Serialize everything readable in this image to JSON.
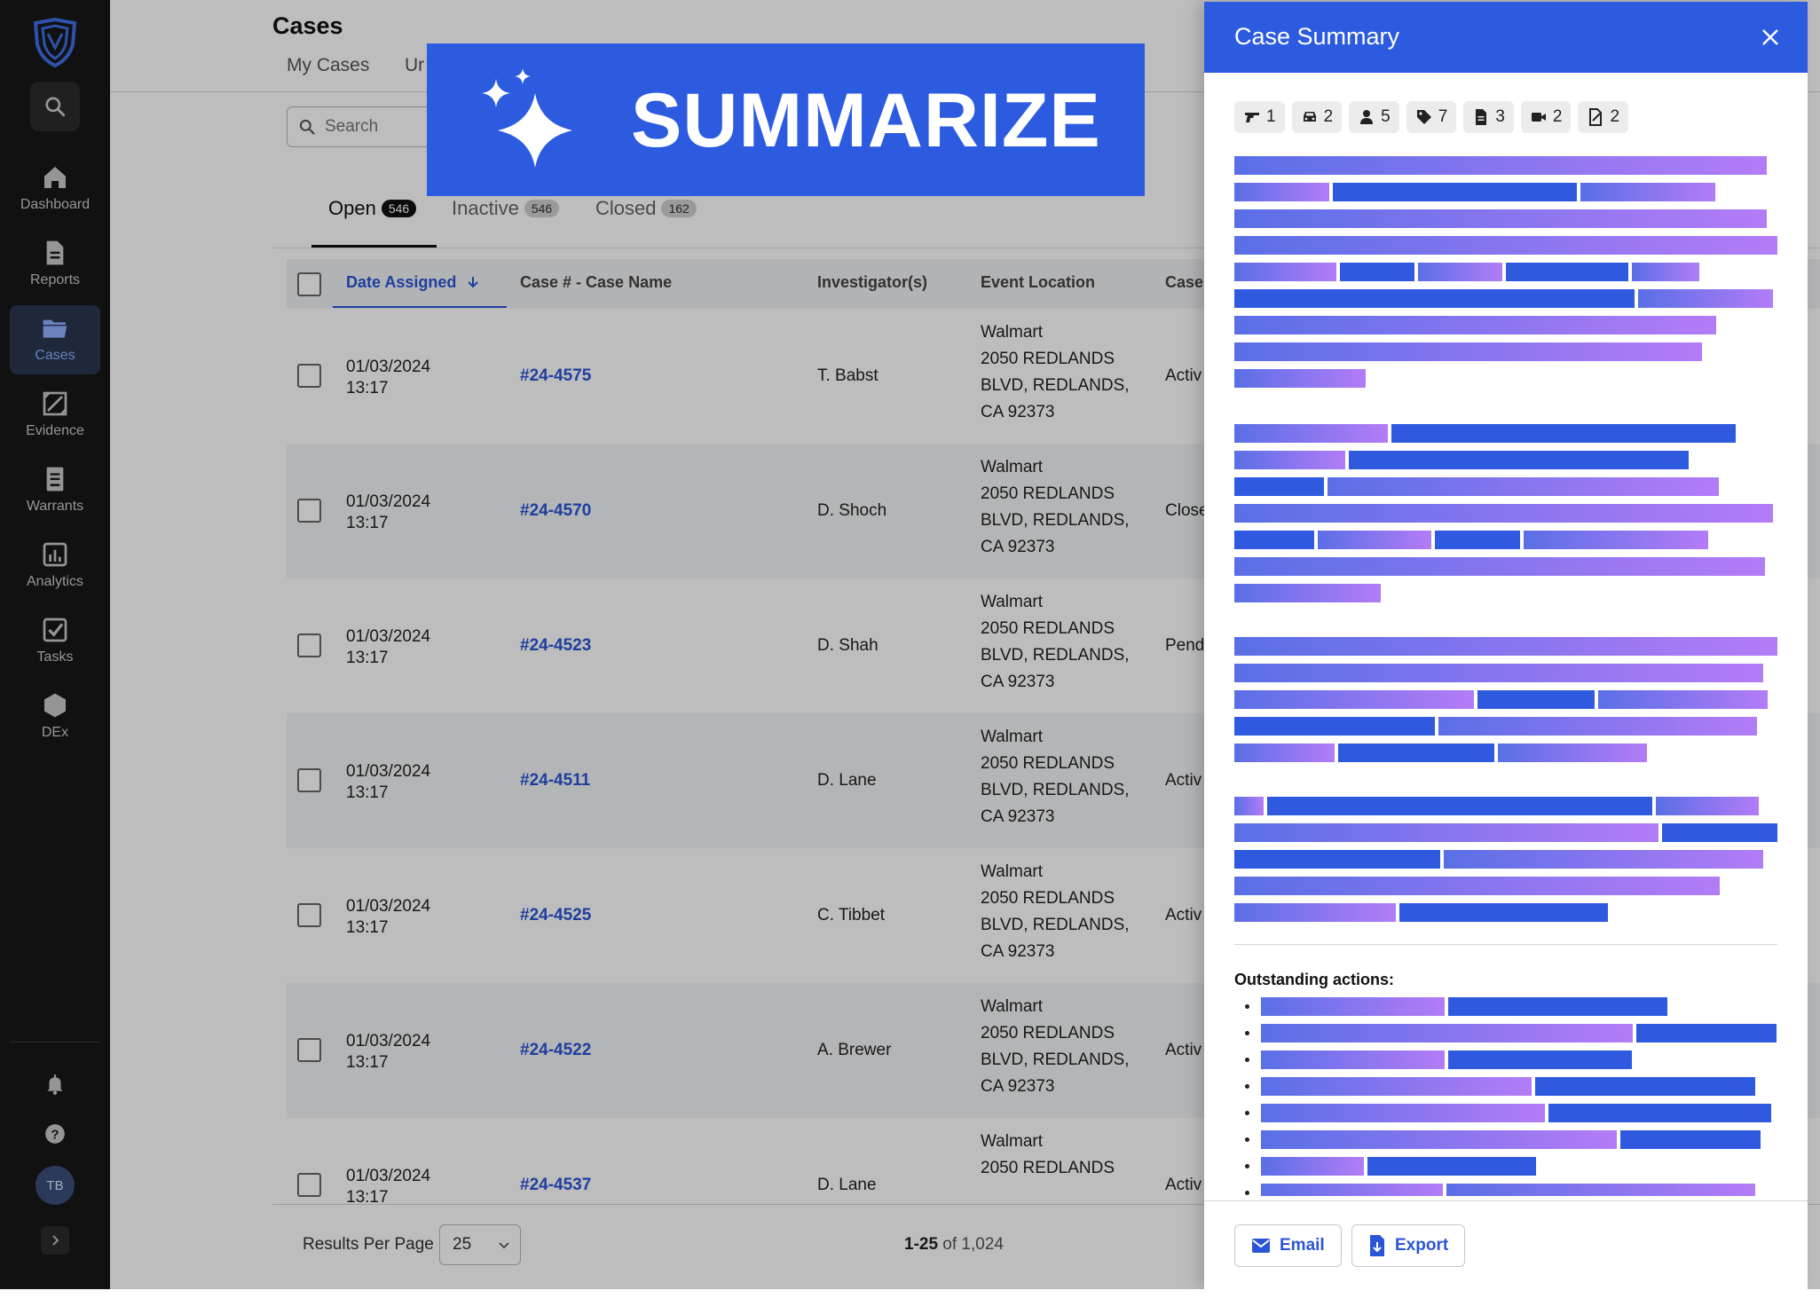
{
  "sidebar": {
    "items": [
      {
        "label": "Dashboard",
        "icon": "home-icon"
      },
      {
        "label": "Reports",
        "icon": "document-icon"
      },
      {
        "label": "Cases",
        "icon": "folder-icon",
        "active": true
      },
      {
        "label": "Evidence",
        "icon": "evidence-icon"
      },
      {
        "label": "Warrants",
        "icon": "warrant-icon"
      },
      {
        "label": "Analytics",
        "icon": "analytics-icon"
      },
      {
        "label": "Tasks",
        "icon": "checkbox-icon"
      },
      {
        "label": "DEx",
        "icon": "hexagon-icon"
      }
    ],
    "user_initials": "TB"
  },
  "header": {
    "title": "Cases",
    "subtabs": [
      "My Cases",
      "Ur"
    ]
  },
  "search": {
    "placeholder": "Search"
  },
  "status_tabs": [
    {
      "label": "Open",
      "count": "546",
      "active": true
    },
    {
      "label": "Inactive",
      "count": "546"
    },
    {
      "label": "Closed",
      "count": "162"
    }
  ],
  "table": {
    "columns": [
      "Date Assigned",
      "Case # - Case Name",
      "Investigator(s)",
      "Event Location",
      "Case"
    ],
    "rows": [
      {
        "date": "01/03/2024",
        "time": "13:17",
        "case": "#24-4575",
        "investigator": "T. Babst",
        "loc1": "Walmart",
        "loc2": "2050 REDLANDS",
        "loc3": "BLVD, REDLANDS,",
        "loc4": "CA 92373",
        "status": "Activ"
      },
      {
        "date": "01/03/2024",
        "time": "13:17",
        "case": "#24-4570",
        "investigator": "D. Shoch",
        "loc1": "Walmart",
        "loc2": "2050 REDLANDS",
        "loc3": "BLVD, REDLANDS,",
        "loc4": "CA 92373",
        "status": "Close"
      },
      {
        "date": "01/03/2024",
        "time": "13:17",
        "case": "#24-4523",
        "investigator": "D. Shah",
        "loc1": "Walmart",
        "loc2": "2050 REDLANDS",
        "loc3": "BLVD, REDLANDS,",
        "loc4": "CA 92373",
        "status": "Pend"
      },
      {
        "date": "01/03/2024",
        "time": "13:17",
        "case": "#24-4511",
        "investigator": "D. Lane",
        "loc1": "Walmart",
        "loc2": "2050 REDLANDS",
        "loc3": "BLVD, REDLANDS,",
        "loc4": "CA 92373",
        "status": "Activ"
      },
      {
        "date": "01/03/2024",
        "time": "13:17",
        "case": "#24-4525",
        "investigator": "C. Tibbet",
        "loc1": "Walmart",
        "loc2": "2050 REDLANDS",
        "loc3": "BLVD, REDLANDS,",
        "loc4": "CA 92373",
        "status": "Activ"
      },
      {
        "date": "01/03/2024",
        "time": "13:17",
        "case": "#24-4522",
        "investigator": "A. Brewer",
        "loc1": "Walmart",
        "loc2": "2050 REDLANDS",
        "loc3": "BLVD, REDLANDS,",
        "loc4": "CA 92373",
        "status": "Activ"
      },
      {
        "date": "01/03/2024",
        "time": "13:17",
        "case": "#24-4537",
        "investigator": "D. Lane",
        "loc1": "Walmart",
        "loc2": "2050 REDLANDS",
        "loc3": "",
        "loc4": "",
        "status": "Activ"
      }
    ]
  },
  "footer": {
    "results_per_page_label": "Results Per Page",
    "results_per_page_value": "25",
    "range": "1-25",
    "total": " of 1,024"
  },
  "banner": {
    "text": "SUMMARIZE"
  },
  "panel": {
    "title": "Case Summary",
    "counts": [
      {
        "icon": "gun-icon",
        "value": "1"
      },
      {
        "icon": "vehicle-icon",
        "value": "2"
      },
      {
        "icon": "person-icon",
        "value": "5"
      },
      {
        "icon": "tag-icon",
        "value": "7"
      },
      {
        "icon": "document-icon",
        "value": "3"
      },
      {
        "icon": "video-icon",
        "value": "2"
      },
      {
        "icon": "signed-doc-icon",
        "value": "2"
      }
    ],
    "outstanding_label": "Outstanding actions:",
    "email_label": "Email",
    "export_label": "Export"
  }
}
